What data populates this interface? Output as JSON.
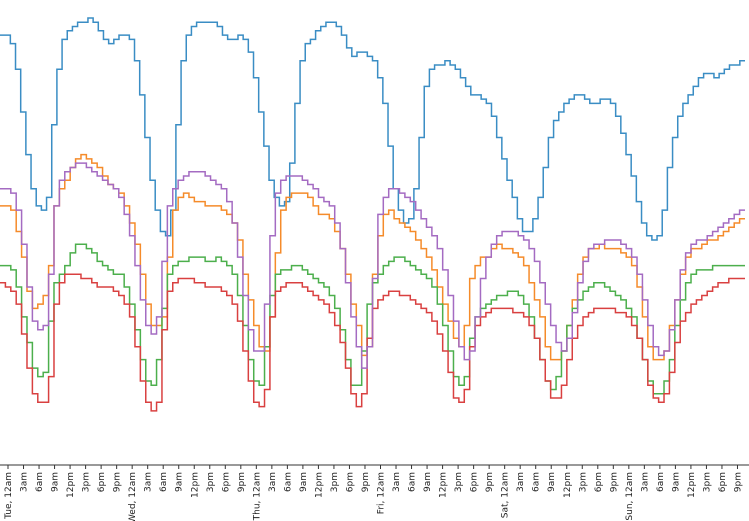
{
  "chart_data": {
    "type": "line",
    "step": true,
    "title": "",
    "xlabel": "",
    "ylabel": "",
    "y_ticks_shown": false,
    "grid": false,
    "legend": "none",
    "x_start": "Tue, 12am",
    "hours_per_step": 1,
    "x_tick_labels": [
      "Tue, 12am",
      "3am",
      "6am",
      "9am",
      "12pm",
      "3pm",
      "6pm",
      "9pm",
      "Wed, 12am",
      "3am",
      "6am",
      "9am",
      "12pm",
      "3pm",
      "6pm",
      "9pm",
      "Thu, 12am",
      "3am",
      "6am",
      "9am",
      "12pm",
      "3pm",
      "6pm",
      "9pm",
      "Fri, 12am",
      "3am",
      "6am",
      "9am",
      "12pm",
      "3pm",
      "6pm",
      "9pm",
      "Sat, 12am",
      "3am",
      "6am",
      "9am",
      "12pm",
      "3pm",
      "6pm",
      "9pm",
      "Sun, 12am",
      "3am",
      "6am",
      "9am",
      "12pm",
      "3pm",
      "6pm",
      "9pm",
      "Mon, 12am"
    ],
    "ylim": [
      0,
      100
    ],
    "series": [
      {
        "color": "#3a8dc4",
        "values": [
          96,
          96,
          94,
          88,
          78,
          68,
          60,
          56,
          55,
          58,
          75,
          88,
          95,
          97,
          98,
          99,
          99,
          100,
          99,
          97,
          95,
          94,
          95,
          96,
          96,
          95,
          90,
          82,
          72,
          62,
          55,
          50,
          49,
          55,
          75,
          90,
          96,
          98,
          99,
          99,
          99,
          99,
          98,
          96,
          95,
          95,
          96,
          95,
          92,
          86,
          78,
          70,
          62,
          58,
          56,
          57,
          66,
          80,
          90,
          94,
          95,
          97,
          98,
          99,
          99,
          98,
          96,
          93,
          91,
          92,
          92,
          91,
          90,
          86,
          80,
          70,
          60,
          55,
          52,
          53,
          60,
          72,
          84,
          88,
          89,
          89,
          90,
          89,
          88,
          86,
          84,
          82,
          82,
          81,
          80,
          77,
          72,
          67,
          62,
          58,
          53,
          50,
          50,
          53,
          58,
          65,
          72,
          76,
          78,
          80,
          81,
          82,
          82,
          81,
          80,
          80,
          81,
          81,
          80,
          77,
          73,
          68,
          63,
          57,
          52,
          49,
          48,
          49,
          55,
          65,
          72,
          77,
          80,
          82,
          84,
          86,
          87,
          87,
          86,
          87,
          88,
          89,
          89,
          90
        ]
      },
      {
        "color": "#f58b2a",
        "values": [
          56,
          56,
          55,
          50,
          44,
          36,
          32,
          33,
          35,
          42,
          56,
          60,
          62,
          65,
          67,
          68,
          67,
          66,
          65,
          63,
          61,
          60,
          59,
          56,
          52,
          47,
          40,
          33,
          28,
          28,
          30,
          44,
          55,
          58,
          59,
          58,
          57,
          57,
          56,
          56,
          56,
          55,
          54,
          52,
          48,
          40,
          34,
          28,
          23,
          22,
          30,
          45,
          55,
          58,
          59,
          59,
          59,
          58,
          56,
          54,
          54,
          53,
          50,
          46,
          40,
          33,
          28,
          21,
          23,
          40,
          49,
          54,
          55,
          53,
          52,
          51,
          50,
          48,
          46,
          44,
          41,
          37,
          33,
          29,
          25,
          23,
          28,
          39,
          42,
          44,
          44,
          46,
          47,
          46,
          46,
          45,
          44,
          42,
          38,
          34,
          30,
          23,
          20,
          20,
          22,
          28,
          34,
          40,
          44,
          46,
          46,
          47,
          46,
          46,
          46,
          45,
          44,
          42,
          37,
          30,
          23,
          20,
          20,
          22,
          28,
          34,
          40,
          44,
          46,
          46,
          47,
          48,
          48,
          49,
          50,
          51,
          52,
          53
        ]
      },
      {
        "color": "#4caf4c",
        "values": [
          42,
          42,
          41,
          37,
          30,
          24,
          18,
          16,
          17,
          29,
          38,
          40,
          42,
          45,
          47,
          47,
          46,
          45,
          43,
          42,
          41,
          40,
          40,
          37,
          33,
          27,
          20,
          15,
          14,
          20,
          32,
          40,
          42,
          43,
          43,
          44,
          44,
          44,
          43,
          43,
          44,
          43,
          42,
          40,
          35,
          28,
          20,
          15,
          14,
          23,
          35,
          40,
          41,
          41,
          42,
          42,
          41,
          40,
          39,
          38,
          37,
          35,
          32,
          27,
          20,
          14,
          14,
          22,
          33,
          38,
          40,
          42,
          43,
          44,
          44,
          43,
          42,
          41,
          40,
          39,
          37,
          33,
          28,
          22,
          16,
          14,
          16,
          25,
          30,
          32,
          33,
          34,
          35,
          35,
          36,
          36,
          35,
          33,
          30,
          25,
          20,
          15,
          13,
          16,
          22,
          28,
          32,
          34,
          36,
          37,
          38,
          38,
          37,
          36,
          35,
          34,
          32,
          30,
          25,
          20,
          15,
          12,
          12,
          15,
          20,
          28,
          34,
          38,
          40,
          41,
          41,
          41,
          42,
          42,
          42,
          42,
          42,
          42
        ]
      },
      {
        "color": "#d94040",
        "values": [
          38,
          37,
          36,
          33,
          26,
          18,
          12,
          10,
          10,
          16,
          33,
          38,
          40,
          40,
          40,
          39,
          39,
          38,
          37,
          37,
          37,
          36,
          35,
          33,
          30,
          23,
          15,
          10,
          8,
          10,
          27,
          36,
          38,
          39,
          39,
          39,
          38,
          38,
          37,
          37,
          37,
          36,
          35,
          33,
          29,
          22,
          15,
          10,
          9,
          13,
          30,
          36,
          37,
          38,
          38,
          38,
          37,
          36,
          35,
          34,
          33,
          31,
          28,
          24,
          18,
          12,
          9,
          12,
          25,
          32,
          34,
          35,
          36,
          36,
          35,
          35,
          34,
          33,
          32,
          31,
          29,
          26,
          22,
          17,
          11,
          10,
          13,
          23,
          28,
          30,
          31,
          32,
          32,
          32,
          32,
          31,
          31,
          30,
          28,
          25,
          20,
          15,
          11,
          11,
          14,
          20,
          25,
          28,
          30,
          31,
          32,
          32,
          32,
          32,
          31,
          31,
          30,
          28,
          25,
          20,
          14,
          11,
          10,
          12,
          17,
          24,
          29,
          31,
          33,
          34,
          35,
          36,
          37,
          38,
          38,
          39,
          39,
          39
        ]
      },
      {
        "color": "#a46bc2",
        "values": [
          60,
          60,
          59,
          55,
          47,
          37,
          29,
          27,
          28,
          40,
          56,
          62,
          64,
          65,
          66,
          66,
          65,
          64,
          63,
          62,
          61,
          60,
          58,
          54,
          49,
          42,
          34,
          28,
          26,
          30,
          43,
          56,
          60,
          62,
          63,
          64,
          64,
          64,
          63,
          62,
          61,
          60,
          57,
          52,
          44,
          35,
          27,
          22,
          22,
          33,
          49,
          59,
          62,
          63,
          63,
          63,
          62,
          61,
          60,
          58,
          57,
          56,
          52,
          46,
          38,
          30,
          23,
          18,
          23,
          39,
          54,
          58,
          60,
          60,
          59,
          58,
          57,
          55,
          53,
          51,
          49,
          46,
          41,
          35,
          29,
          23,
          20,
          22,
          30,
          39,
          44,
          47,
          49,
          50,
          50,
          50,
          49,
          48,
          46,
          43,
          38,
          33,
          28,
          24,
          22,
          25,
          31,
          38,
          43,
          46,
          47,
          47,
          48,
          48,
          48,
          47,
          46,
          44,
          40,
          34,
          28,
          23,
          21,
          22,
          27,
          34,
          41,
          45,
          47,
          48,
          48,
          49,
          50,
          51,
          52,
          53,
          54,
          55
        ]
      }
    ]
  }
}
